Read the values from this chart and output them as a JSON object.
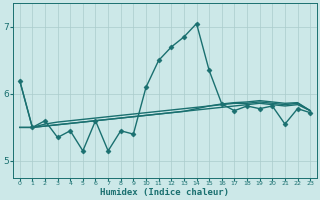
{
  "title": "",
  "xlabel": "Humidex (Indice chaleur)",
  "ylabel": "",
  "bg_color": "#cce8e8",
  "line_color": "#1a7070",
  "grid_color": "#aacccc",
  "xlim": [
    -0.5,
    23.5
  ],
  "ylim": [
    4.75,
    7.35
  ],
  "yticks": [
    5,
    6,
    7
  ],
  "xticks": [
    0,
    1,
    2,
    3,
    4,
    5,
    6,
    7,
    8,
    9,
    10,
    11,
    12,
    13,
    14,
    15,
    16,
    17,
    18,
    19,
    20,
    21,
    22,
    23
  ],
  "series": [
    {
      "x": [
        0,
        1,
        2,
        3,
        4,
        5,
        6,
        7,
        8,
        9,
        10,
        11,
        12,
        13,
        14,
        15,
        16,
        17,
        18,
        19,
        20,
        21,
        22,
        23
      ],
      "y": [
        5.5,
        5.5,
        5.52,
        5.54,
        5.56,
        5.58,
        5.6,
        5.62,
        5.64,
        5.66,
        5.68,
        5.7,
        5.72,
        5.74,
        5.76,
        5.78,
        5.8,
        5.82,
        5.84,
        5.86,
        5.84,
        5.82,
        5.84,
        5.75
      ],
      "marker": null,
      "lw": 1.0
    },
    {
      "x": [
        0,
        1,
        2,
        3,
        4,
        5,
        6,
        7,
        8,
        9,
        10,
        11,
        12,
        13,
        14,
        15,
        16,
        17,
        18,
        19,
        20,
        21,
        22,
        23
      ],
      "y": [
        5.5,
        5.5,
        5.52,
        5.54,
        5.56,
        5.58,
        5.6,
        5.62,
        5.64,
        5.66,
        5.68,
        5.7,
        5.72,
        5.74,
        5.78,
        5.82,
        5.85,
        5.87,
        5.88,
        5.9,
        5.88,
        5.86,
        5.87,
        5.75
      ],
      "marker": null,
      "lw": 1.0
    },
    {
      "x": [
        0,
        1,
        2,
        3,
        4,
        5,
        6,
        7,
        8,
        9,
        10,
        11,
        12,
        13,
        14,
        15,
        16,
        17,
        18,
        19,
        20,
        21,
        22,
        23
      ],
      "y": [
        6.2,
        5.5,
        5.55,
        5.58,
        5.6,
        5.62,
        5.64,
        5.66,
        5.68,
        5.7,
        5.72,
        5.74,
        5.76,
        5.78,
        5.8,
        5.82,
        5.84,
        5.86,
        5.86,
        5.88,
        5.86,
        5.84,
        5.86,
        5.75
      ],
      "marker": null,
      "lw": 1.0
    },
    {
      "x": [
        0,
        1,
        2,
        3,
        4,
        5,
        6,
        7,
        8,
        9,
        10,
        11,
        12,
        13,
        14,
        15,
        16,
        17,
        18,
        19,
        20,
        21,
        22,
        23
      ],
      "y": [
        6.2,
        5.5,
        5.6,
        5.35,
        5.45,
        5.15,
        5.6,
        5.15,
        5.45,
        5.4,
        6.1,
        6.5,
        6.7,
        6.85,
        7.05,
        6.35,
        5.85,
        5.75,
        5.82,
        5.78,
        5.82,
        5.55,
        5.78,
        5.72
      ],
      "marker": "D",
      "ms": 2.5,
      "lw": 1.0
    }
  ]
}
